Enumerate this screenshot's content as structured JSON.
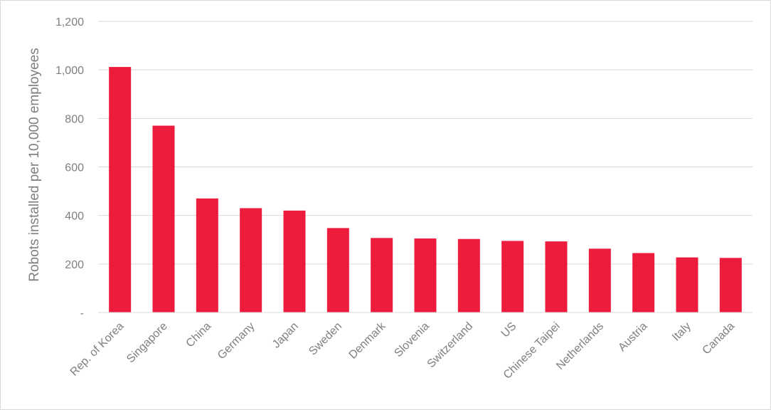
{
  "chart_data": {
    "type": "bar",
    "title": "",
    "xlabel": "",
    "ylabel": "Robots installed per 10,000 employees",
    "categories": [
      "Rep. of Korea",
      "Singapore",
      "China",
      "Germany",
      "Japan",
      "Sweden",
      "Denmark",
      "Slovenia",
      "Switzerland",
      "US",
      "Chinese Taipei",
      "Netherlands",
      "Austria",
      "Italy",
      "Canada"
    ],
    "values": [
      1012,
      770,
      470,
      430,
      420,
      348,
      307,
      305,
      303,
      295,
      293,
      263,
      245,
      227,
      225
    ],
    "ylim": [
      0,
      1200
    ],
    "yticks": [
      0,
      200,
      400,
      600,
      800,
      1000,
      1200
    ],
    "ytick_labels": [
      "-",
      "200",
      "400",
      "600",
      "800",
      "1,000",
      "1,200"
    ],
    "grid": true,
    "legend": "none",
    "bar_color": "#ee1c3c",
    "grid_color": "#d9d9d9",
    "text_color": "#7f7f7f"
  }
}
